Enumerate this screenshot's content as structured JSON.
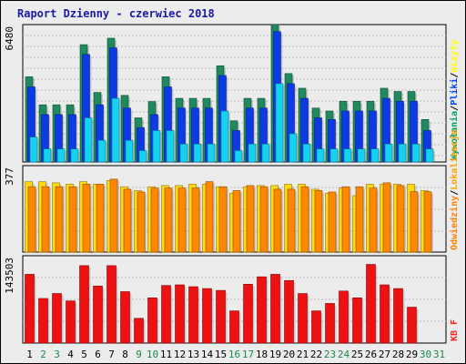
{
  "chart_data": {
    "type": "bar",
    "title": "Raport Dzienny -  czerwiec 2018",
    "categories": [
      "1",
      "2",
      "3",
      "4",
      "5",
      "6",
      "7",
      "8",
      "9",
      "10",
      "11",
      "12",
      "13",
      "14",
      "15",
      "16",
      "17",
      "18",
      "19",
      "20",
      "21",
      "22",
      "23",
      "24",
      "25",
      "26",
      "27",
      "28",
      "29",
      "30",
      "31"
    ],
    "weekend_days": [
      "2",
      "3",
      "9",
      "10",
      "16",
      "17",
      "23",
      "24",
      "30",
      "31"
    ],
    "panels": [
      {
        "id": "top",
        "ymax_label": "6480",
        "ymax": 6480,
        "legend": [
          {
            "text": "Wywołania",
            "color": "#00a060"
          },
          {
            "text": "/",
            "color": "#000000"
          },
          {
            "text": "Pliki",
            "color": "#0040ff"
          },
          {
            "text": "/",
            "color": "#000000"
          },
          {
            "text": "Wizyty",
            "color": "#ffff00"
          }
        ],
        "series": [
          {
            "name": "Wywołania",
            "color": "#1f8a5e",
            "values": [
              4018,
              2697,
              2697,
              2697,
              5532,
              3280,
              5838,
              3140,
              2082,
              2850,
              4018,
              3001,
              3001,
              3001,
              4539,
              1943,
              3001,
              3001,
              6507,
              4169,
              3477,
              2543,
              2404,
              2863,
              2863,
              2863,
              3477,
              3326,
              3326,
              2004,
              0
            ]
          },
          {
            "name": "Pliki",
            "color": "#0c3be6",
            "values": [
              3541,
              2235,
              2235,
              2235,
              5073,
              2697,
              5380,
              2543,
              1621,
              2235,
              3541,
              2543,
              2543,
              2543,
              4077,
              1481,
              2543,
              2543,
              6147,
              3694,
              3001,
              2082,
              2004,
              2404,
              2404,
              2404,
              3001,
              2863,
              2863,
              1481,
              0
            ]
          },
          {
            "name": "Wizyty",
            "color": "#15d3f0",
            "values": [
              1175,
              614,
              614,
              614,
              2082,
              1020,
              3001,
              1020,
              536,
              1481,
              1481,
              847,
              847,
              847,
              2404,
              536,
              847,
              847,
              3694,
              1333,
              847,
              614,
              614,
              614,
              614,
              614,
              847,
              847,
              847,
              614,
              0
            ]
          }
        ]
      },
      {
        "id": "middle",
        "ymax_label": "377",
        "ymax": 377,
        "legend": [
          {
            "text": "Odwiedziny",
            "color": "#ff8000"
          },
          {
            "text": "/",
            "color": "#000000"
          },
          {
            "text": "Lokalizacje",
            "color": "#ffa000"
          }
        ],
        "series": [
          {
            "name": "Odwiedziny",
            "color": "#ffd814",
            "values": [
              307,
              307,
              302,
              296,
              307,
              296,
              312,
              285,
              268,
              285,
              290,
              290,
              296,
              296,
              285,
              257,
              285,
              290,
              290,
              296,
              296,
              274,
              257,
              279,
              246,
              296,
              296,
              296,
              296,
              268,
              0
            ]
          },
          {
            "name": "Lokalizacje",
            "color": "#ff8800",
            "values": [
              285,
              285,
              285,
              285,
              296,
              296,
              318,
              274,
              262,
              279,
              279,
              279,
              279,
              307,
              285,
              268,
              290,
              285,
              274,
              274,
              285,
              268,
              262,
              285,
              285,
              279,
              302,
              290,
              263,
              263,
              0
            ]
          }
        ]
      },
      {
        "id": "bottom",
        "ymax_label": "143503",
        "ymax": 143503,
        "legend": [
          {
            "text": "KB F",
            "color": "#ff2020"
          }
        ],
        "series": [
          {
            "name": "KB F",
            "color": "#ee1111",
            "values": [
              112958,
              73265,
              81408,
              69193,
              127204,
              93620,
              127204,
              84462,
              40683,
              74283,
              94638,
              95656,
              92602,
              89548,
              86493,
              52897,
              96674,
              108885,
              112958,
              102779,
              81408,
              52897,
              65121,
              85478,
              74283,
              129240,
              95656,
              89548,
              59007,
              0,
              0
            ]
          }
        ]
      }
    ]
  }
}
